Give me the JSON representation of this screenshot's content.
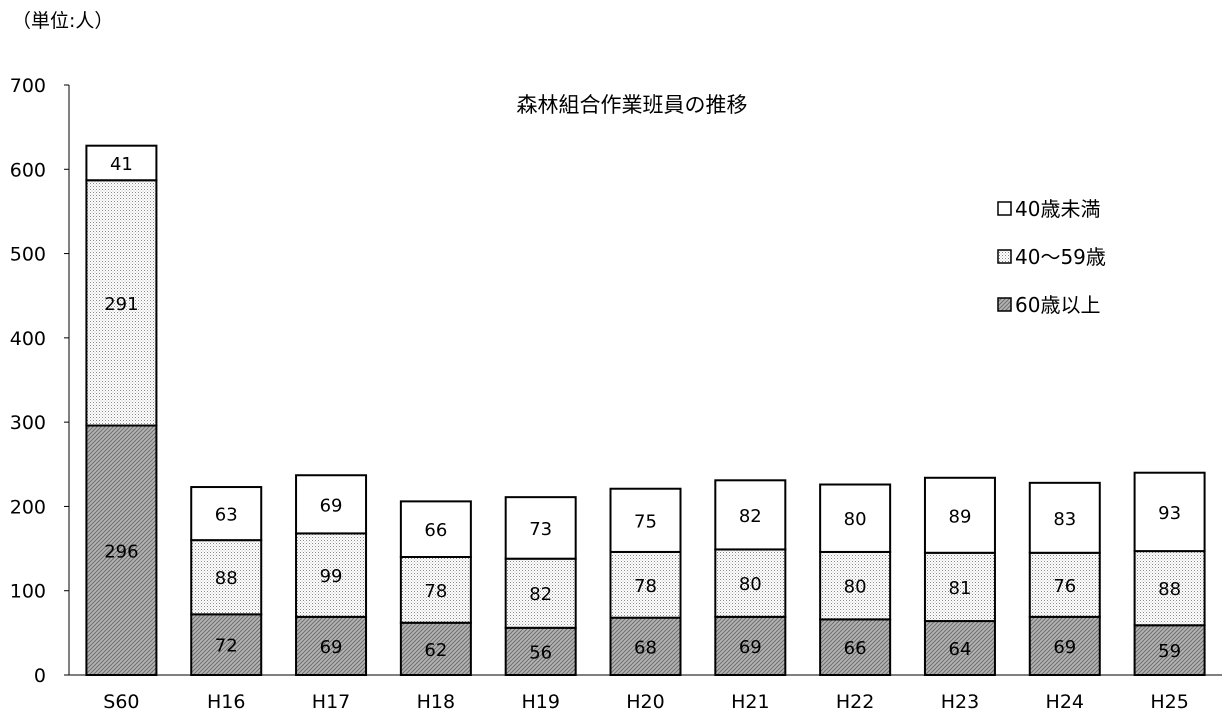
{
  "unit_label": "（単位:人）",
  "chart_data": {
    "type": "bar",
    "stacked": true,
    "title": "森林組合作業班員の推移",
    "xlabel": "",
    "ylabel": "",
    "ylim": [
      0,
      700
    ],
    "yticks": [
      0,
      100,
      200,
      300,
      400,
      500,
      600,
      700
    ],
    "grid": false,
    "legend_position": "right",
    "categories": [
      "S60",
      "H16",
      "H17",
      "H18",
      "H19",
      "H20",
      "H21",
      "H22",
      "H23",
      "H24",
      "H25"
    ],
    "series": [
      {
        "name": "60歳以上",
        "fill": "dark-hatch",
        "values": [
          296,
          72,
          69,
          62,
          56,
          68,
          69,
          66,
          64,
          69,
          59
        ]
      },
      {
        "name": "40～59歳",
        "fill": "light-dots",
        "values": [
          291,
          88,
          99,
          78,
          82,
          78,
          80,
          80,
          81,
          76,
          88
        ]
      },
      {
        "name": "40歳未満",
        "fill": "white",
        "values": [
          41,
          63,
          69,
          66,
          73,
          75,
          82,
          80,
          89,
          83,
          93
        ]
      }
    ],
    "legend_order": [
      "40歳未満",
      "40～59歳",
      "60歳以上"
    ],
    "colors": {
      "dark": "#a8a8a8",
      "light": "#e6e6e6",
      "white": "#ffffff",
      "stroke": "#000000"
    }
  }
}
